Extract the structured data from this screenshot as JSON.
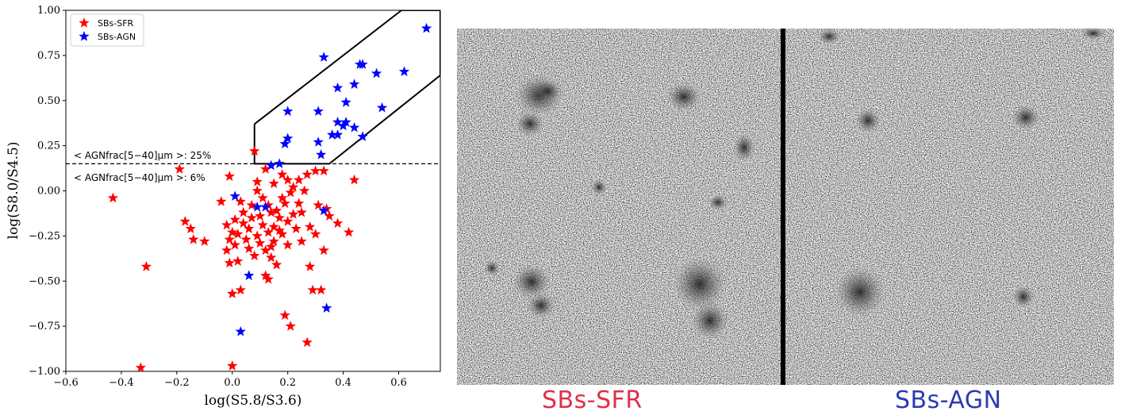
{
  "chart_data": {
    "type": "scatter",
    "xlabel": "log(S5.8/S3.6)",
    "ylabel": "log(S8.0/S4.5)",
    "xlim": [
      -0.6,
      0.75
    ],
    "ylim": [
      -1.0,
      1.0
    ],
    "x_ticks": [
      "−0.6",
      "−0.4",
      "−0.2",
      "0.0",
      "0.2",
      "0.4",
      "0.6"
    ],
    "x_tick_values": [
      -0.6,
      -0.4,
      -0.2,
      0.0,
      0.2,
      0.4,
      0.6
    ],
    "y_ticks": [
      "1.00",
      "0.75",
      "0.50",
      "0.25",
      "0.00",
      "−0.25",
      "−0.50",
      "−0.75",
      "−1.00"
    ],
    "y_tick_values": [
      1.0,
      0.75,
      0.5,
      0.25,
      0.0,
      -0.25,
      -0.5,
      -0.75,
      -1.0
    ],
    "grid": false,
    "legend_placement": "top-left",
    "hline": {
      "y": 0.15,
      "style": "dashed"
    },
    "annotations": {
      "above": "< AGNfrac[5−40]μm >: 25%",
      "below": "< AGNfrac[5−40]μm >: 6%"
    },
    "wedge_polygon": [
      [
        0.08,
        0.37
      ],
      [
        0.08,
        0.15
      ],
      [
        0.35,
        0.15
      ],
      [
        0.75,
        0.64
      ],
      [
        0.75,
        1.0
      ],
      [
        0.61,
        1.0
      ],
      [
        0.08,
        0.37
      ]
    ],
    "series": [
      {
        "name": "SBs-SFR",
        "color": "#ff0000",
        "points": [
          [
            -0.43,
            -0.04
          ],
          [
            -0.33,
            -0.98
          ],
          [
            -0.31,
            -0.42
          ],
          [
            -0.19,
            0.12
          ],
          [
            -0.17,
            -0.17
          ],
          [
            -0.15,
            -0.21
          ],
          [
            -0.14,
            -0.27
          ],
          [
            -0.1,
            -0.28
          ],
          [
            -0.04,
            -0.06
          ],
          [
            -0.02,
            -0.33
          ],
          [
            -0.02,
            -0.19
          ],
          [
            -0.01,
            0.08
          ],
          [
            -0.01,
            -0.27
          ],
          [
            -0.01,
            -0.4
          ],
          [
            0.0,
            -0.97
          ],
          [
            0.0,
            -0.23
          ],
          [
            0.0,
            -0.57
          ],
          [
            0.01,
            -0.16
          ],
          [
            0.01,
            -0.3
          ],
          [
            0.02,
            -0.39
          ],
          [
            0.02,
            -0.24
          ],
          [
            0.03,
            -0.55
          ],
          [
            0.03,
            -0.06
          ],
          [
            0.04,
            -0.18
          ],
          [
            0.04,
            -0.12
          ],
          [
            0.05,
            -0.27
          ],
          [
            0.06,
            -0.32
          ],
          [
            0.06,
            -0.21
          ],
          [
            0.07,
            -0.08
          ],
          [
            0.07,
            -0.15
          ],
          [
            0.08,
            0.22
          ],
          [
            0.08,
            -0.36
          ],
          [
            0.09,
            0.05
          ],
          [
            0.09,
            -0.25
          ],
          [
            0.09,
            0.0
          ],
          [
            0.1,
            -0.14
          ],
          [
            0.1,
            -0.29
          ],
          [
            0.11,
            -0.04
          ],
          [
            0.11,
            -0.19
          ],
          [
            0.12,
            0.12
          ],
          [
            0.12,
            -0.33
          ],
          [
            0.12,
            -0.47
          ],
          [
            0.13,
            -0.23
          ],
          [
            0.13,
            -0.49
          ],
          [
            0.13,
            -0.08
          ],
          [
            0.14,
            -0.37
          ],
          [
            0.14,
            -0.12
          ],
          [
            0.14,
            -0.31
          ],
          [
            0.15,
            -0.2
          ],
          [
            0.15,
            -0.28
          ],
          [
            0.15,
            0.04
          ],
          [
            0.16,
            -0.11
          ],
          [
            0.16,
            -0.41
          ],
          [
            0.17,
            -0.15
          ],
          [
            0.17,
            -0.22
          ],
          [
            0.18,
            0.09
          ],
          [
            0.18,
            -0.04
          ],
          [
            0.18,
            -0.24
          ],
          [
            0.19,
            -0.07
          ],
          [
            0.19,
            -0.69
          ],
          [
            0.2,
            0.06
          ],
          [
            0.2,
            -0.3
          ],
          [
            0.2,
            -0.17
          ],
          [
            0.21,
            -0.75
          ],
          [
            0.21,
            -0.01
          ],
          [
            0.22,
            -0.13
          ],
          [
            0.22,
            0.02
          ],
          [
            0.23,
            -0.21
          ],
          [
            0.24,
            -0.07
          ],
          [
            0.24,
            0.06
          ],
          [
            0.25,
            -0.28
          ],
          [
            0.25,
            -0.12
          ],
          [
            0.26,
            0.0
          ],
          [
            0.27,
            -0.84
          ],
          [
            0.27,
            0.09
          ],
          [
            0.28,
            -0.42
          ],
          [
            0.28,
            -0.2
          ],
          [
            0.29,
            -0.55
          ],
          [
            0.3,
            0.11
          ],
          [
            0.3,
            -0.24
          ],
          [
            0.31,
            -0.08
          ],
          [
            0.32,
            -0.55
          ],
          [
            0.33,
            0.11
          ],
          [
            0.33,
            -0.33
          ],
          [
            0.34,
            -0.1
          ],
          [
            0.35,
            -0.14
          ],
          [
            0.38,
            -0.18
          ],
          [
            0.42,
            -0.23
          ],
          [
            0.44,
            0.06
          ]
        ]
      },
      {
        "name": "SBs-AGN",
        "color": "#0000ff",
        "points": [
          [
            0.7,
            0.9
          ],
          [
            0.62,
            0.66
          ],
          [
            0.54,
            0.46
          ],
          [
            0.52,
            0.65
          ],
          [
            0.47,
            0.7
          ],
          [
            0.46,
            0.7
          ],
          [
            0.47,
            0.3
          ],
          [
            0.44,
            0.35
          ],
          [
            0.44,
            0.59
          ],
          [
            0.41,
            0.49
          ],
          [
            0.41,
            0.38
          ],
          [
            0.4,
            0.36
          ],
          [
            0.38,
            0.57
          ],
          [
            0.38,
            0.31
          ],
          [
            0.38,
            0.38
          ],
          [
            0.36,
            0.31
          ],
          [
            0.33,
            0.74
          ],
          [
            0.31,
            0.44
          ],
          [
            0.31,
            0.27
          ],
          [
            0.32,
            0.2
          ],
          [
            0.2,
            0.44
          ],
          [
            0.2,
            0.29
          ],
          [
            0.19,
            0.26
          ],
          [
            0.17,
            0.15
          ],
          [
            0.14,
            0.14
          ],
          [
            0.33,
            -0.11
          ],
          [
            0.34,
            -0.65
          ],
          [
            0.12,
            -0.09
          ],
          [
            0.09,
            -0.09
          ],
          [
            0.01,
            -0.03
          ],
          [
            0.06,
            -0.47
          ],
          [
            0.03,
            -0.78
          ]
        ]
      }
    ]
  },
  "captions": {
    "left": "SBs-SFR",
    "right": "SBs-AGN"
  }
}
